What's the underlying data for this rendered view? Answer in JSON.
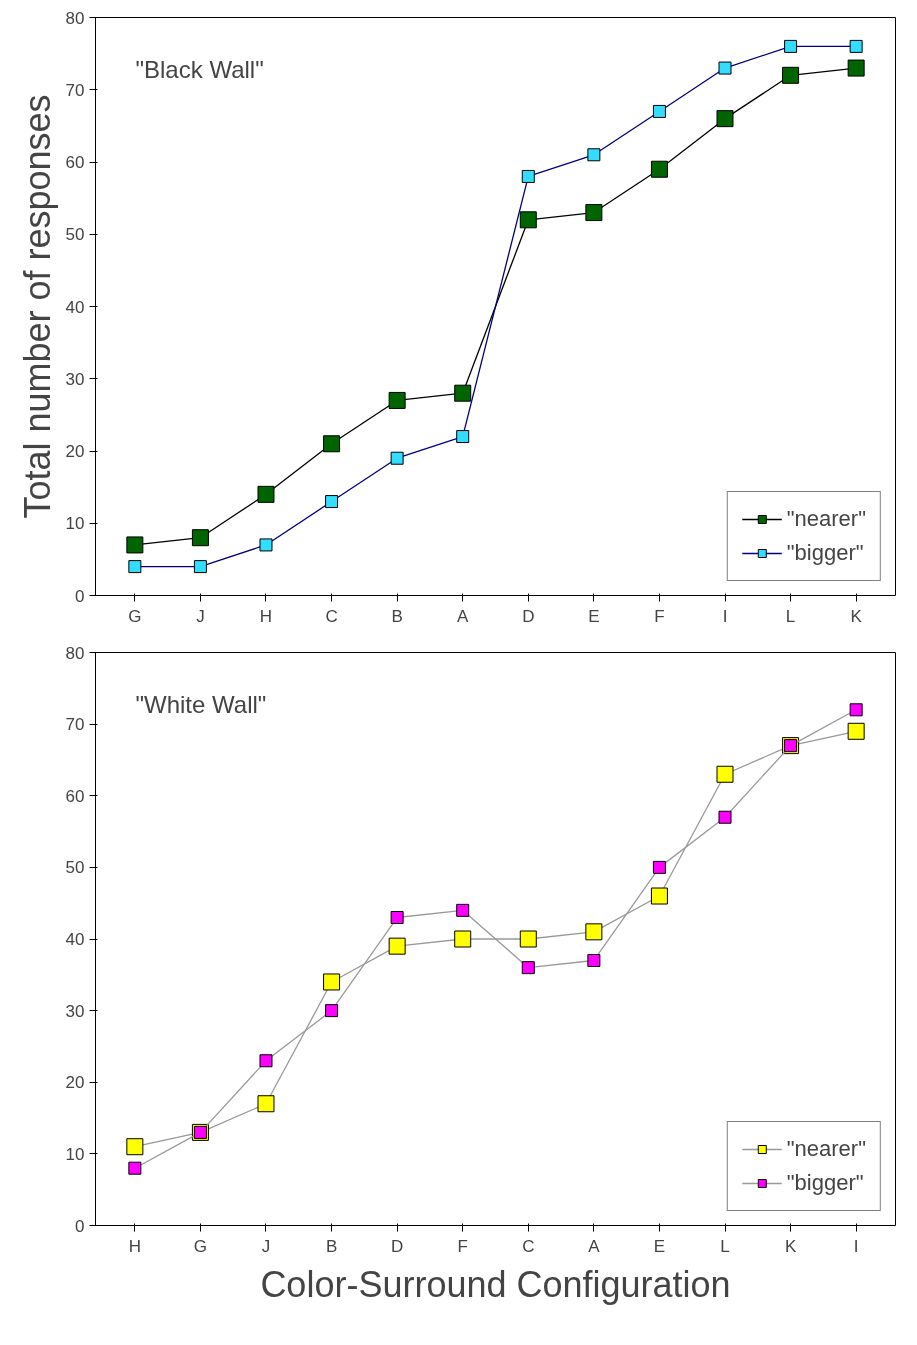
{
  "chart_data": [
    {
      "type": "line",
      "ylabel": "Total number of responses",
      "annotations": [
        "\"Black Wall\""
      ],
      "categories": [
        "G",
        "J",
        "H",
        "C",
        "B",
        "A",
        "D",
        "E",
        "F",
        "I",
        "L",
        "K"
      ],
      "ylim": [
        0,
        80
      ],
      "yticks": [
        0,
        10,
        20,
        30,
        40,
        50,
        60,
        70,
        80
      ],
      "grid": false,
      "legend": "bottom right",
      "marker": "square",
      "line_style": "solid",
      "series": [
        {
          "name": "\"nearer\"",
          "color": "#006400",
          "values": [
            7,
            8,
            14,
            21,
            27,
            28,
            52,
            53,
            59,
            66,
            72,
            73
          ]
        },
        {
          "name": "\"bigger\"",
          "color": "#33ddff",
          "values": [
            4,
            4,
            7,
            13,
            19,
            22,
            58,
            61,
            67,
            73,
            76,
            76
          ]
        }
      ]
    },
    {
      "type": "line",
      "xlabel": "Color-Surround Configuration",
      "annotations": [
        "\"White Wall\""
      ],
      "categories": [
        "H",
        "G",
        "J",
        "B",
        "D",
        "F",
        "C",
        "A",
        "E",
        "L",
        "K",
        "I"
      ],
      "ylim": [
        0,
        80
      ],
      "yticks": [
        0,
        10,
        20,
        30,
        40,
        50,
        60,
        70,
        80
      ],
      "grid": false,
      "legend": "bottom right",
      "marker": "square",
      "line_style": "solid",
      "series": [
        {
          "name": "\"nearer\"",
          "color": "#ffff00",
          "values": [
            11,
            13,
            17,
            34,
            39,
            40,
            40,
            41,
            46,
            63,
            67,
            69
          ]
        },
        {
          "name": "\"bigger\"",
          "color": "#ff00ff",
          "values": [
            8,
            13,
            23,
            30,
            43,
            44,
            36,
            37,
            50,
            57,
            67,
            72
          ]
        }
      ]
    }
  ]
}
